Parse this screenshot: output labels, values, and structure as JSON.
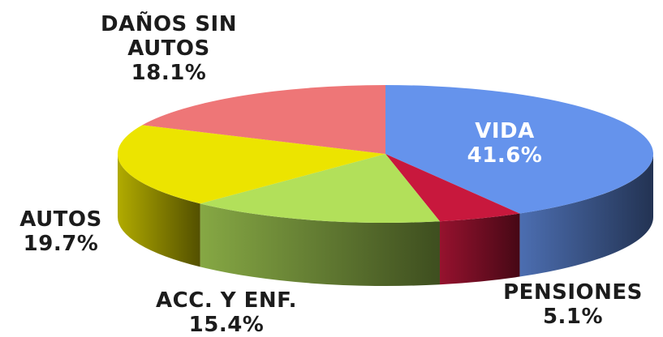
{
  "chart_data": {
    "type": "pie3d",
    "categories": [
      "VIDA",
      "PENSIONES",
      "ACC. Y ENF.",
      "AUTOS",
      "DAÑOS SIN AUTOS"
    ],
    "values": [
      41.6,
      5.1,
      15.4,
      19.7,
      18.1
    ],
    "value_labels": [
      "41.6%",
      "5.1%",
      "15.4%",
      "19.7%",
      "18.1%"
    ],
    "colors": [
      "#6593ec",
      "#c8183d",
      "#b2e05a",
      "#ece400",
      "#ee7677"
    ]
  }
}
